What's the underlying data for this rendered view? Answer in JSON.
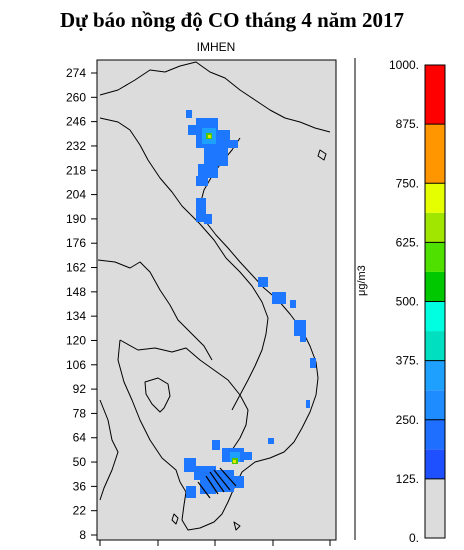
{
  "title": "Dự báo nồng độ CO tháng 4 năm 2017",
  "subtitle": "IMHEN",
  "unit": "μg/m3",
  "y_axis": {
    "ticks": [
      "274",
      "260",
      "246",
      "232",
      "218",
      "204",
      "190",
      "176",
      "162",
      "148",
      "134",
      "120",
      "106",
      "92",
      "78",
      "64",
      "50",
      "36",
      "22",
      "8"
    ]
  },
  "legend": {
    "ticks": [
      "1000.",
      "875.",
      "750.",
      "625.",
      "500.",
      "375.",
      "250.",
      "125.",
      "0."
    ],
    "bands": [
      {
        "from": 0,
        "to": 125,
        "color": "#dcdcdc"
      },
      {
        "from": 125,
        "to": 187.5,
        "color": "#1e50ff"
      },
      {
        "from": 187.5,
        "to": 250,
        "color": "#1e6eff"
      },
      {
        "from": 250,
        "to": 312.5,
        "color": "#1e8cff"
      },
      {
        "from": 312.5,
        "to": 375,
        "color": "#1ea0ff"
      },
      {
        "from": 375,
        "to": 437.5,
        "color": "#00e0c0"
      },
      {
        "from": 437.5,
        "to": 500,
        "color": "#00ffe0"
      },
      {
        "from": 500,
        "to": 562.5,
        "color": "#00c800"
      },
      {
        "from": 562.5,
        "to": 625,
        "color": "#50e000"
      },
      {
        "from": 625,
        "to": 687.5,
        "color": "#a0e600"
      },
      {
        "from": 687.5,
        "to": 750,
        "color": "#e6ff00"
      },
      {
        "from": 750,
        "to": 875,
        "color": "#ff9600"
      },
      {
        "from": 875,
        "to": 1000,
        "color": "#ff0000"
      }
    ]
  },
  "colors": {
    "background": "#dcdcdc",
    "border": "#000000",
    "hotspot_blue": "#1e78ff",
    "hotspot_light": "#1ea0ff",
    "hotspot_green": "#50c800",
    "hotspot_yellow": "#e6e600"
  }
}
